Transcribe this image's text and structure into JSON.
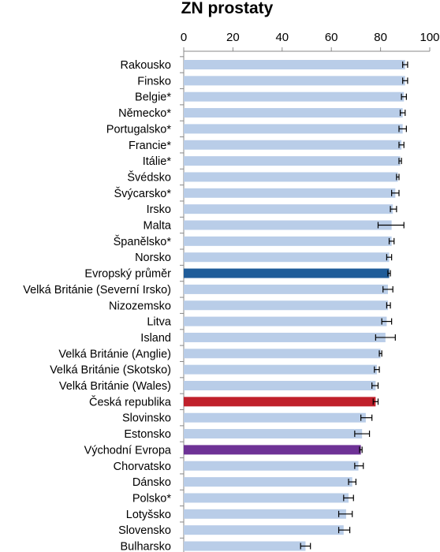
{
  "chart_data": {
    "type": "bar",
    "orientation": "horizontal",
    "title": "ZN prostaty",
    "xlim": [
      0,
      100
    ],
    "xticks": [
      "0",
      "20",
      "40",
      "60",
      "80",
      "100"
    ],
    "tick_values": [
      0,
      20,
      40,
      60,
      80,
      100
    ],
    "grid": false,
    "axis_position": "top",
    "categories": [
      "Rakousko",
      "Finsko",
      "Belgie*",
      "Německo*",
      "Portugalsko*",
      "Francie*",
      "Itálie*",
      "Švédsko",
      "Švýcarsko*",
      "Irsko",
      "Malta",
      "Španělsko*",
      "Norsko",
      "Evropský průměr",
      "Velká Británie (Severní Irsko)",
      "Nizozemsko",
      "Litva",
      "Island",
      "Velká Británie (Anglie)",
      "Velká Británie (Skotsko)",
      "Velká Británie (Wales)",
      "Česká republika",
      "Slovinsko",
      "Estonsko",
      "Východní Evropa",
      "Chorvatsko",
      "Dánsko",
      "Polsko*",
      "Lotyšsko",
      "Slovensko",
      "Bulharsko"
    ],
    "values": [
      90,
      90,
      89.5,
      89,
      89,
      88.5,
      88,
      87,
      86,
      85,
      84.5,
      84.5,
      83.5,
      83.5,
      83,
      83,
      82.5,
      82,
      80,
      78.5,
      78,
      78,
      74,
      72.5,
      72,
      71,
      68.5,
      67,
      66,
      65,
      49.5
    ],
    "error_low": [
      89,
      89,
      88.5,
      88,
      87.5,
      87.5,
      87.5,
      86.5,
      84.5,
      84,
      79,
      83.5,
      82.5,
      83,
      81,
      82.5,
      80.5,
      78,
      79.5,
      77.5,
      76.5,
      77,
      72,
      69.5,
      71.5,
      69.5,
      67,
      65,
      63,
      63,
      47.5
    ],
    "error_high": [
      91,
      91,
      90.5,
      90,
      90.5,
      89.5,
      88.5,
      87.5,
      87.5,
      86.5,
      89.5,
      85.5,
      84.5,
      84,
      85,
      84,
      84.5,
      86,
      80.5,
      79.5,
      79,
      79,
      76.5,
      75.5,
      72.5,
      73,
      70,
      69,
      68.5,
      67.5,
      51.5
    ],
    "default_color": "#b9cde8",
    "highlight_colors": {
      "Evropský průměr": "#1f5c99",
      "Česká republika": "#c0202b",
      "Východní Evropa": "#6e3296"
    }
  }
}
